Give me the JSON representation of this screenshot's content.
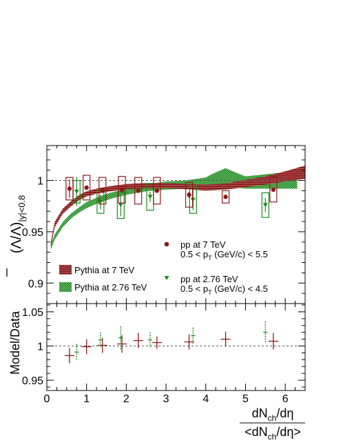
{
  "colors": {
    "pp7": "#8b1a1a",
    "pp276": "#1a8a1a",
    "frame": "#000000",
    "reference": "#555555"
  },
  "chart_data": [
    {
      "type": "scatter",
      "panel": "top",
      "ylabel": "(Λ̄/Λ)|y|<0.8",
      "ylabel_main": "(Λ/Λ)",
      "ylabel_sub": "|y|<0.8",
      "ylim": [
        0.88,
        1.034
      ],
      "xlim": [
        0,
        6.5
      ],
      "yticks": [
        "0.9",
        "0.95",
        "1"
      ],
      "reference_line": 1.0,
      "legend_placement": "bottom-right",
      "legend": {
        "pp7": {
          "line1": "pp at 7 TeV",
          "line2": "0.5 < p",
          "line2_sub": "T",
          "line2_rest": " (GeV/c) < 5.5"
        },
        "pp276": {
          "line1": "pp at 2.76 TeV",
          "line2": "0.5 < p",
          "line2_sub": "T",
          "line2_rest": " (GeV/c) < 4.5"
        },
        "pythia7": "Pythia at 7 TeV",
        "pythia276": "Pythia at 2.76 TeV"
      },
      "series": [
        {
          "name": "pp at 7 TeV",
          "marker": "circle",
          "x": [
            0.57,
            1.0,
            1.4,
            1.89,
            2.3,
            2.77,
            3.58,
            4.5,
            5.7
          ],
          "y": [
            0.992,
            0.993,
            0.99,
            0.991,
            0.99,
            0.99,
            0.986,
            0.984,
            0.991
          ],
          "stat_err": [
            0.009,
            0.002,
            0.002,
            0.003,
            0.002,
            0.002,
            0.003,
            0.002,
            0.002
          ],
          "sys_err": [
            0.011,
            0.012,
            0.013,
            0.013,
            0.013,
            0.013,
            0.012,
            0.006,
            0.012
          ]
        },
        {
          "name": "pp at 2.76 TeV",
          "marker": "triangle-down",
          "x": [
            0.75,
            1.35,
            1.86,
            2.6,
            3.68,
            5.5
          ],
          "y": [
            0.989,
            0.979,
            0.976,
            0.984,
            0.981,
            0.976
          ],
          "stat_err": [
            0.014,
            0.007,
            0.011,
            0.005,
            0.01,
            0.007
          ],
          "sys_err": [
            0.011,
            0.011,
            0.013,
            0.013,
            0.013,
            0.012
          ]
        },
        {
          "name": "Pythia at 7 TeV",
          "type": "band",
          "x": [
            0.1,
            0.2,
            0.4,
            0.6,
            0.8,
            1.0,
            1.3,
            1.6,
            2.0,
            2.5,
            3.0,
            3.5,
            4.0,
            4.5,
            5.0,
            5.5,
            6.0,
            6.5
          ],
          "y": [
            0.938,
            0.957,
            0.97,
            0.977,
            0.983,
            0.987,
            0.99,
            0.992,
            0.994,
            0.995,
            0.995,
            0.994,
            0.993,
            0.994,
            0.997,
            1.0,
            1.004,
            1.008
          ],
          "half_width": [
            0.0025,
            0.0025,
            0.0025,
            0.0025,
            0.0025,
            0.0025,
            0.0025,
            0.0025,
            0.0025,
            0.0025,
            0.0025,
            0.0025,
            0.003,
            0.003,
            0.0035,
            0.004,
            0.005,
            0.0065
          ]
        },
        {
          "name": "Pythia at 2.76 TeV",
          "type": "band",
          "x": [
            0.1,
            0.2,
            0.4,
            0.6,
            0.8,
            1.0,
            1.3,
            1.6,
            2.0,
            2.5,
            3.0,
            3.5,
            4.0,
            4.2,
            4.5,
            4.8,
            5.0,
            5.5,
            6.0,
            6.3
          ],
          "y": [
            0.935,
            0.945,
            0.957,
            0.965,
            0.971,
            0.976,
            0.981,
            0.985,
            0.989,
            0.993,
            0.995,
            0.996,
            0.998,
            1.001,
            1.004,
            1.0,
            0.998,
            0.999,
            1.0,
            1.0
          ],
          "half_width": [
            0.0025,
            0.0025,
            0.0025,
            0.0025,
            0.0025,
            0.003,
            0.003,
            0.003,
            0.003,
            0.0035,
            0.004,
            0.004,
            0.005,
            0.006,
            0.008,
            0.007,
            0.006,
            0.007,
            0.008,
            0.008
          ]
        }
      ]
    },
    {
      "type": "scatter",
      "panel": "bottom",
      "ylabel": "Model/Data",
      "xlabel_num": "dN",
      "xlabel_num_sub": "ch",
      "xlabel_num_rest": "/dη",
      "xlabel_den": "<dN",
      "xlabel_den_sub": "ch",
      "xlabel_den_rest": "/dη>",
      "xlim": [
        0,
        6.5
      ],
      "ylim": [
        0.935,
        1.062
      ],
      "xticks": [
        "0",
        "1",
        "2",
        "3",
        "4",
        "5",
        "6"
      ],
      "yticks": [
        "0.95",
        "1",
        "1.05"
      ],
      "reference_line": 1.0,
      "series": [
        {
          "name": "pp at 7 TeV",
          "x": [
            0.57,
            1.0,
            1.4,
            1.89,
            2.3,
            2.77,
            3.58,
            4.5,
            5.7
          ],
          "y": [
            0.986,
            0.999,
            1.001,
            1.003,
            1.008,
            1.005,
            1.006,
            1.01,
            1.007
          ],
          "err": [
            0.011,
            0.011,
            0.011,
            0.013,
            0.011,
            0.009,
            0.011,
            0.011,
            0.012
          ]
        },
        {
          "name": "pp at 2.76 TeV",
          "x": [
            0.75,
            1.35,
            1.86,
            2.6,
            3.68,
            5.5
          ],
          "y": [
            0.991,
            1.009,
            1.012,
            1.009,
            1.015,
            1.02
          ],
          "err": [
            0.012,
            0.011,
            0.017,
            0.011,
            0.012,
            0.016
          ]
        }
      ]
    }
  ]
}
